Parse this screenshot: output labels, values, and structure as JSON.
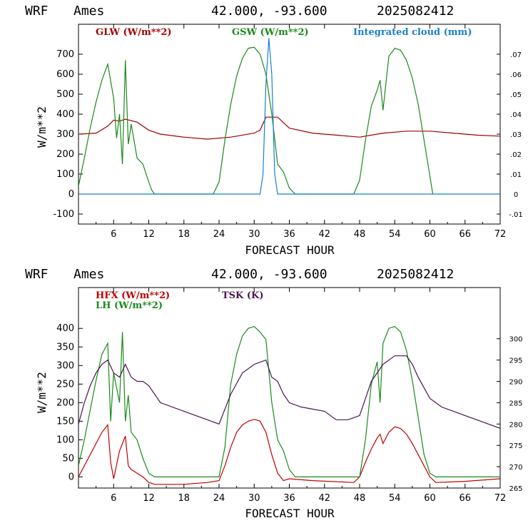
{
  "chart_data": [
    {
      "type": "line",
      "header": {
        "model": "WRF",
        "site": "Ames",
        "coords": "42.000, -93.600",
        "run": "2025082412"
      },
      "xlabel": "FORECAST HOUR",
      "ylabel": "W/m**2",
      "xlim": [
        0,
        72
      ],
      "ylim": [
        -150,
        850
      ],
      "y2lim": [
        -0.015,
        0.085
      ],
      "x_ticks": [
        6,
        12,
        18,
        24,
        30,
        36,
        42,
        48,
        54,
        60,
        66,
        72
      ],
      "y_ticks": [
        -100,
        0,
        100,
        200,
        300,
        400,
        500,
        600,
        700
      ],
      "y2_ticks": [
        -0.01,
        0,
        0.01,
        0.02,
        0.03,
        0.04,
        0.05,
        0.06,
        0.07
      ],
      "y2_tick_labels": [
        "-.01",
        "0",
        ".01",
        ".02",
        ".03",
        ".04",
        ".05",
        ".06",
        ".07"
      ],
      "series": [
        {
          "name": "GLW (W/m**2)",
          "color": "#a00000",
          "axis": "left",
          "x": [
            0,
            3,
            5,
            6,
            7,
            8,
            10,
            12,
            14,
            18,
            22,
            26,
            30,
            31,
            32,
            34,
            36,
            40,
            44,
            48,
            52,
            56,
            60,
            64,
            68,
            72
          ],
          "y": [
            300,
            305,
            340,
            370,
            365,
            375,
            360,
            320,
            300,
            285,
            275,
            285,
            305,
            320,
            385,
            385,
            330,
            305,
            295,
            285,
            305,
            315,
            315,
            305,
            295,
            290
          ]
        },
        {
          "name": "GSW (W/m**2)",
          "color": "#1a8a1a",
          "axis": "left",
          "x": [
            0,
            1,
            2,
            3,
            4,
            5,
            6,
            6.5,
            7,
            7.5,
            8,
            8.5,
            9,
            10,
            11,
            12,
            12.5,
            13,
            23,
            24,
            25,
            26,
            27,
            28,
            29,
            30,
            31,
            32,
            33,
            34,
            35,
            36,
            37,
            47,
            48,
            49,
            50,
            51,
            51.5,
            52,
            53,
            54,
            55,
            56,
            57,
            58,
            59,
            60,
            60.5
          ],
          "y": [
            40,
            180,
            330,
            460,
            570,
            650,
            480,
            280,
            400,
            150,
            670,
            250,
            350,
            180,
            150,
            60,
            20,
            0,
            0,
            60,
            270,
            450,
            590,
            680,
            730,
            735,
            700,
            600,
            400,
            150,
            110,
            30,
            0,
            0,
            70,
            270,
            440,
            520,
            570,
            420,
            690,
            730,
            720,
            670,
            580,
            450,
            270,
            90,
            0
          ]
        },
        {
          "name": "Integrated cloud (mm)",
          "color": "#1a7fcf",
          "axis": "right",
          "x": [
            0,
            31,
            31.5,
            32,
            32.5,
            33,
            33.5,
            34,
            72
          ],
          "y": [
            0,
            0,
            0.01,
            0.055,
            0.078,
            0.06,
            0.01,
            0,
            0
          ]
        }
      ]
    },
    {
      "type": "line",
      "header": {
        "model": "WRF",
        "site": "Ames",
        "coords": "42.000, -93.600",
        "run": "2025082412"
      },
      "xlabel": "FORECAST HOUR",
      "ylabel": "W/m**2",
      "xlim": [
        0,
        72
      ],
      "ylim": [
        -30,
        510
      ],
      "y2lim": [
        265,
        312
      ],
      "x_ticks": [
        6,
        12,
        18,
        24,
        30,
        36,
        42,
        48,
        54,
        60,
        66,
        72
      ],
      "y_ticks": [
        0,
        50,
        100,
        150,
        200,
        250,
        300,
        350,
        400
      ],
      "y2_ticks": [
        265,
        270,
        275,
        280,
        285,
        290,
        295,
        300
      ],
      "y2_tick_labels": [
        "265",
        "270",
        "275",
        "280",
        "285",
        "290",
        "295",
        "300"
      ],
      "series": [
        {
          "name": "HFX (W/m**2)",
          "color": "#c00000",
          "axis": "left",
          "x": [
            0,
            1,
            2,
            3,
            4,
            5,
            5.5,
            6,
            7,
            8,
            8.5,
            9,
            10,
            11,
            12,
            13,
            18,
            22,
            24,
            25,
            26,
            27,
            28,
            29,
            30,
            31,
            32,
            33,
            34,
            35,
            36,
            40,
            47,
            48,
            49,
            50,
            51,
            51.5,
            52,
            53,
            54,
            55,
            56,
            57,
            58,
            59,
            60,
            61,
            66,
            72
          ],
          "y": [
            0,
            30,
            60,
            90,
            120,
            140,
            40,
            -5,
            70,
            110,
            30,
            20,
            10,
            0,
            -15,
            -20,
            -20,
            -15,
            -10,
            30,
            80,
            120,
            140,
            150,
            155,
            150,
            120,
            60,
            10,
            -10,
            -5,
            -10,
            -15,
            0,
            40,
            75,
            105,
            115,
            90,
            120,
            135,
            130,
            115,
            90,
            60,
            30,
            0,
            -15,
            -12,
            -5
          ]
        },
        {
          "name": "LH (W/m**2)",
          "color": "#1a8a1a",
          "axis": "left",
          "x": [
            0,
            1,
            2,
            3,
            4,
            5,
            5.5,
            6,
            7,
            7.5,
            8,
            8.5,
            9,
            10,
            11,
            12,
            13,
            18,
            22,
            24,
            25,
            26,
            27,
            28,
            29,
            30,
            31,
            32,
            33,
            34,
            35,
            36,
            37,
            47,
            48,
            49,
            50,
            51,
            51.5,
            52,
            53,
            54,
            55,
            56,
            57,
            58,
            59,
            60,
            61,
            66,
            72
          ],
          "y": [
            30,
            100,
            180,
            260,
            330,
            360,
            150,
            280,
            200,
            390,
            150,
            220,
            120,
            100,
            50,
            10,
            0,
            0,
            0,
            0,
            80,
            250,
            330,
            380,
            400,
            405,
            390,
            370,
            200,
            100,
            70,
            20,
            0,
            0,
            0,
            100,
            250,
            310,
            200,
            360,
            400,
            405,
            390,
            340,
            260,
            160,
            60,
            10,
            0,
            0,
            0
          ]
        },
        {
          "name": "TSK (K)",
          "color": "#4b1350",
          "axis": "right",
          "x": [
            0,
            1,
            2,
            3,
            4,
            5,
            6,
            7,
            8,
            9,
            10,
            11,
            12,
            14,
            18,
            22,
            24,
            26,
            28,
            30,
            32,
            33,
            34,
            35,
            36,
            38,
            42,
            44,
            46,
            48,
            50,
            52,
            54,
            56,
            57,
            58,
            60,
            62,
            66,
            72
          ],
          "y": [
            280,
            285,
            289,
            292,
            294,
            295,
            292,
            291,
            294,
            291,
            290,
            290,
            289,
            285,
            283,
            281,
            280,
            287,
            292,
            294,
            295,
            291,
            290,
            287,
            285,
            284,
            283,
            281,
            281,
            282,
            290,
            294,
            296,
            296,
            294,
            291,
            286,
            284,
            282,
            279
          ]
        }
      ]
    }
  ]
}
